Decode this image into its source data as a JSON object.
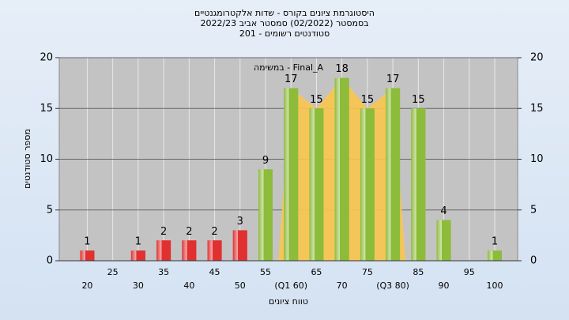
{
  "chart_data": {
    "type": "bar",
    "title": "היסטוגרמת ציונים בקורס - שדות אלקטרומגנטיים",
    "subtitle": "בסמסטר (02/2022) סמסטר אביב 2022/23",
    "subtitle2": "סטודנטים רשומים - 201",
    "annotation": "במשימה - Final_A",
    "x_label": "טווח ציונים",
    "y_label": "מספר סטודנטים",
    "x": [
      20,
      25,
      30,
      35,
      40,
      45,
      50,
      55,
      60,
      65,
      70,
      75,
      80,
      85,
      90,
      95,
      100
    ],
    "values": [
      1,
      0,
      1,
      2,
      2,
      2,
      3,
      9,
      17,
      15,
      18,
      15,
      17,
      15,
      4,
      0,
      1
    ],
    "colors": [
      "#e03030",
      "#e03030",
      "#e03030",
      "#e03030",
      "#e03030",
      "#e03030",
      "#e03030",
      "#8dbb3a",
      "#8dbb3a",
      "#8dbb3a",
      "#8dbb3a",
      "#8dbb3a",
      "#8dbb3a",
      "#8dbb3a",
      "#8dbb3a",
      "#8dbb3a",
      "#8dbb3a"
    ],
    "xlim": [
      14.5,
      104.5
    ],
    "xticks": [
      20,
      25,
      30,
      35,
      40,
      45,
      50,
      55,
      {
        "value": 60,
        "label": "(Q1 60)"
      },
      65,
      70,
      75,
      {
        "value": 80,
        "label": "(Q3 80)"
      },
      85,
      90,
      95,
      100
    ],
    "ylim": [
      0,
      20
    ],
    "yticks": [
      0,
      5,
      10,
      15,
      20
    ],
    "y2lim": [
      0,
      20
    ],
    "y2ticks": [
      0,
      5,
      10,
      15,
      20
    ],
    "quartile_band": {
      "x": [
        60,
        80
      ],
      "color": "#f9c74f"
    },
    "grid": true
  }
}
